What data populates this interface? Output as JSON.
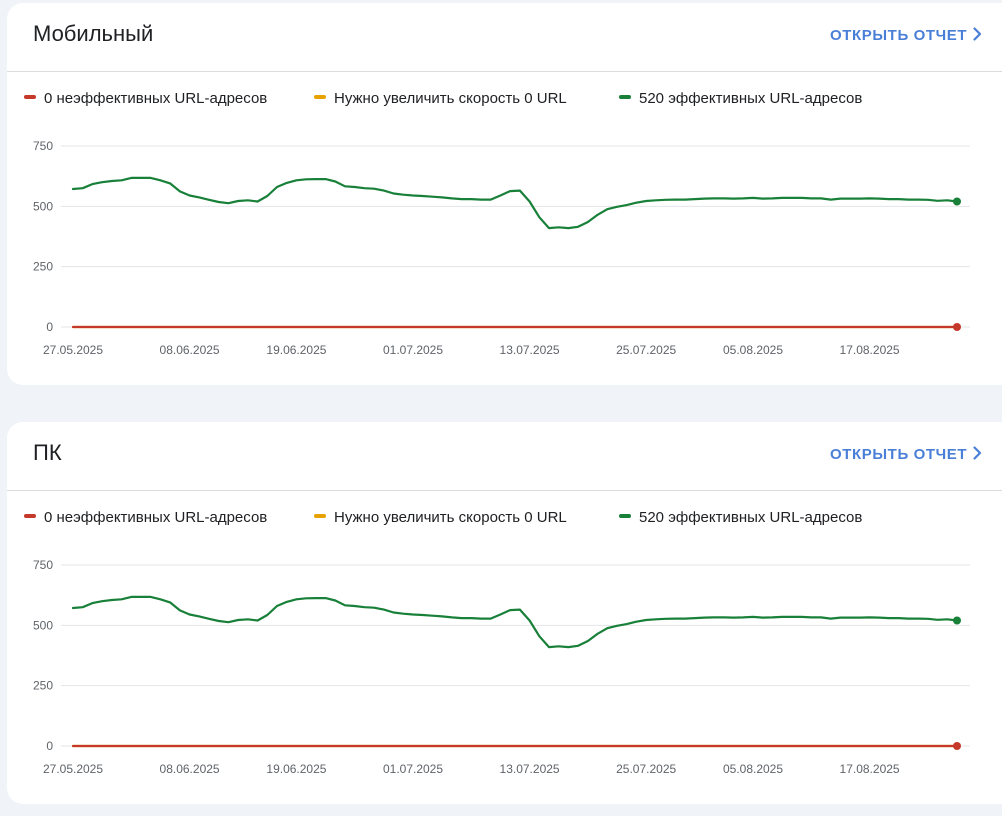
{
  "cards": [
    {
      "title": "Мобильный",
      "open_report_label": "ОТКРЫТЬ ОТЧЕТ",
      "legend": [
        {
          "label": "0 неэффективных URL-адресов",
          "color": "#c5392b"
        },
        {
          "label": "Нужно увеличить скорость 0 URL",
          "color": "#e8a200"
        },
        {
          "label": "520 эффективных URL-адресов",
          "color": "#188038"
        }
      ]
    },
    {
      "title": "ПК",
      "open_report_label": "ОТКРЫТЬ ОТЧЕТ",
      "legend": [
        {
          "label": "0 неэффективных URL-адресов",
          "color": "#c5392b"
        },
        {
          "label": "Нужно увеличить скорость 0 URL",
          "color": "#e8a200"
        },
        {
          "label": "520 эффективных URL-адресов",
          "color": "#188038"
        }
      ]
    }
  ],
  "chart_data": [
    {
      "type": "line",
      "x_range": [
        "27.05.2025",
        "26.08.2025"
      ],
      "x_ticks": [
        "27.05.2025",
        "08.06.2025",
        "19.06.2025",
        "01.07.2025",
        "13.07.2025",
        "25.07.2025",
        "05.08.2025",
        "17.08.2025"
      ],
      "y_ticks": [
        0,
        250,
        500,
        750
      ],
      "ylim": [
        0,
        750
      ],
      "grid": true,
      "legend_placement": "top-left",
      "series": [
        {
          "name": "0 неэффективных URL-адресов",
          "color": "#c5392b",
          "points": [
            [
              "27.05.2025",
              0
            ],
            [
              "26.08.2025",
              0
            ]
          ]
        },
        {
          "name": "Нужно увеличить скорость 0 URL",
          "color": "#e8a200",
          "points": [
            [
              "27.05.2025",
              0
            ],
            [
              "26.08.2025",
              0
            ]
          ]
        },
        {
          "name": "520 эффективных URL-адресов",
          "color": "#188038",
          "points": [
            [
              "27.05.2025",
              572
            ],
            [
              "28.05.2025",
              575
            ],
            [
              "29.05.2025",
              592
            ],
            [
              "30.05.2025",
              600
            ],
            [
              "31.05.2025",
              605
            ],
            [
              "01.06.2025",
              608
            ],
            [
              "02.06.2025",
              618
            ],
            [
              "03.06.2025",
              618
            ],
            [
              "04.06.2025",
              618
            ],
            [
              "05.06.2025",
              608
            ],
            [
              "06.06.2025",
              595
            ],
            [
              "07.06.2025",
              562
            ],
            [
              "08.06.2025",
              545
            ],
            [
              "09.06.2025",
              537
            ],
            [
              "10.06.2025",
              527
            ],
            [
              "11.06.2025",
              518
            ],
            [
              "12.06.2025",
              513
            ],
            [
              "13.06.2025",
              522
            ],
            [
              "14.06.2025",
              525
            ],
            [
              "15.06.2025",
              520
            ],
            [
              "16.06.2025",
              543
            ],
            [
              "17.06.2025",
              580
            ],
            [
              "18.06.2025",
              597
            ],
            [
              "19.06.2025",
              608
            ],
            [
              "20.06.2025",
              612
            ],
            [
              "21.06.2025",
              613
            ],
            [
              "22.06.2025",
              613
            ],
            [
              "23.06.2025",
              603
            ],
            [
              "24.06.2025",
              583
            ],
            [
              "25.06.2025",
              580
            ],
            [
              "26.06.2025",
              575
            ],
            [
              "27.06.2025",
              573
            ],
            [
              "28.06.2025",
              565
            ],
            [
              "29.06.2025",
              553
            ],
            [
              "30.06.2025",
              548
            ],
            [
              "01.07.2025",
              545
            ],
            [
              "02.07.2025",
              543
            ],
            [
              "03.07.2025",
              540
            ],
            [
              "04.07.2025",
              537
            ],
            [
              "05.07.2025",
              533
            ],
            [
              "06.07.2025",
              530
            ],
            [
              "07.07.2025",
              530
            ],
            [
              "08.07.2025",
              528
            ],
            [
              "09.07.2025",
              528
            ],
            [
              "10.07.2025",
              545
            ],
            [
              "11.07.2025",
              563
            ],
            [
              "12.07.2025",
              565
            ],
            [
              "13.07.2025",
              520
            ],
            [
              "14.07.2025",
              455
            ],
            [
              "15.07.2025",
              410
            ],
            [
              "16.07.2025",
              413
            ],
            [
              "17.07.2025",
              410
            ],
            [
              "18.07.2025",
              415
            ],
            [
              "19.07.2025",
              435
            ],
            [
              "20.07.2025",
              465
            ],
            [
              "21.07.2025",
              488
            ],
            [
              "22.07.2025",
              498
            ],
            [
              "23.07.2025",
              505
            ],
            [
              "24.07.2025",
              515
            ],
            [
              "25.07.2025",
              522
            ],
            [
              "26.07.2025",
              525
            ],
            [
              "27.07.2025",
              527
            ],
            [
              "28.07.2025",
              528
            ],
            [
              "29.07.2025",
              528
            ],
            [
              "30.07.2025",
              530
            ],
            [
              "31.07.2025",
              532
            ],
            [
              "01.08.2025",
              533
            ],
            [
              "02.08.2025",
              533
            ],
            [
              "03.08.2025",
              532
            ],
            [
              "04.08.2025",
              533
            ],
            [
              "05.08.2025",
              535
            ],
            [
              "06.08.2025",
              532
            ],
            [
              "07.08.2025",
              533
            ],
            [
              "08.08.2025",
              535
            ],
            [
              "09.08.2025",
              535
            ],
            [
              "10.08.2025",
              535
            ],
            [
              "11.08.2025",
              533
            ],
            [
              "12.08.2025",
              533
            ],
            [
              "13.08.2025",
              528
            ],
            [
              "14.08.2025",
              532
            ],
            [
              "15.08.2025",
              532
            ],
            [
              "16.08.2025",
              532
            ],
            [
              "17.08.2025",
              533
            ],
            [
              "18.08.2025",
              532
            ],
            [
              "19.08.2025",
              530
            ],
            [
              "20.08.2025",
              530
            ],
            [
              "21.08.2025",
              528
            ],
            [
              "22.08.2025",
              528
            ],
            [
              "23.08.2025",
              527
            ],
            [
              "24.08.2025",
              523
            ],
            [
              "25.08.2025",
              525
            ],
            [
              "26.08.2025",
              520
            ]
          ]
        }
      ]
    },
    {
      "type": "line",
      "x_range": [
        "27.05.2025",
        "26.08.2025"
      ],
      "x_ticks": [
        "27.05.2025",
        "08.06.2025",
        "19.06.2025",
        "01.07.2025",
        "13.07.2025",
        "25.07.2025",
        "05.08.2025",
        "17.08.2025"
      ],
      "y_ticks": [
        0,
        250,
        500,
        750
      ],
      "ylim": [
        0,
        750
      ],
      "grid": true,
      "legend_placement": "top-left",
      "series": [
        {
          "name": "0 неэффективных URL-адресов",
          "color": "#c5392b",
          "points": [
            [
              "27.05.2025",
              0
            ],
            [
              "26.08.2025",
              0
            ]
          ]
        },
        {
          "name": "Нужно увеличить скорость 0 URL",
          "color": "#e8a200",
          "points": [
            [
              "27.05.2025",
              0
            ],
            [
              "26.08.2025",
              0
            ]
          ]
        },
        {
          "name": "520 эффективных URL-адресов",
          "color": "#188038",
          "points": [
            [
              "27.05.2025",
              572
            ],
            [
              "28.05.2025",
              575
            ],
            [
              "29.05.2025",
              592
            ],
            [
              "30.05.2025",
              600
            ],
            [
              "31.05.2025",
              605
            ],
            [
              "01.06.2025",
              608
            ],
            [
              "02.06.2025",
              618
            ],
            [
              "03.06.2025",
              618
            ],
            [
              "04.06.2025",
              618
            ],
            [
              "05.06.2025",
              608
            ],
            [
              "06.06.2025",
              595
            ],
            [
              "07.06.2025",
              562
            ],
            [
              "08.06.2025",
              545
            ],
            [
              "09.06.2025",
              537
            ],
            [
              "10.06.2025",
              527
            ],
            [
              "11.06.2025",
              518
            ],
            [
              "12.06.2025",
              513
            ],
            [
              "13.06.2025",
              522
            ],
            [
              "14.06.2025",
              525
            ],
            [
              "15.06.2025",
              520
            ],
            [
              "16.06.2025",
              543
            ],
            [
              "17.06.2025",
              580
            ],
            [
              "18.06.2025",
              597
            ],
            [
              "19.06.2025",
              608
            ],
            [
              "20.06.2025",
              612
            ],
            [
              "21.06.2025",
              613
            ],
            [
              "22.06.2025",
              613
            ],
            [
              "23.06.2025",
              603
            ],
            [
              "24.06.2025",
              583
            ],
            [
              "25.06.2025",
              580
            ],
            [
              "26.06.2025",
              575
            ],
            [
              "27.06.2025",
              573
            ],
            [
              "28.06.2025",
              565
            ],
            [
              "29.06.2025",
              553
            ],
            [
              "30.06.2025",
              548
            ],
            [
              "01.07.2025",
              545
            ],
            [
              "02.07.2025",
              543
            ],
            [
              "03.07.2025",
              540
            ],
            [
              "04.07.2025",
              537
            ],
            [
              "05.07.2025",
              533
            ],
            [
              "06.07.2025",
              530
            ],
            [
              "07.07.2025",
              530
            ],
            [
              "08.07.2025",
              528
            ],
            [
              "09.07.2025",
              528
            ],
            [
              "10.07.2025",
              545
            ],
            [
              "11.07.2025",
              563
            ],
            [
              "12.07.2025",
              565
            ],
            [
              "13.07.2025",
              520
            ],
            [
              "14.07.2025",
              455
            ],
            [
              "15.07.2025",
              410
            ],
            [
              "16.07.2025",
              413
            ],
            [
              "17.07.2025",
              410
            ],
            [
              "18.07.2025",
              415
            ],
            [
              "19.07.2025",
              435
            ],
            [
              "20.07.2025",
              465
            ],
            [
              "21.07.2025",
              488
            ],
            [
              "22.07.2025",
              498
            ],
            [
              "23.07.2025",
              505
            ],
            [
              "24.07.2025",
              515
            ],
            [
              "25.07.2025",
              522
            ],
            [
              "26.07.2025",
              525
            ],
            [
              "27.07.2025",
              527
            ],
            [
              "28.07.2025",
              528
            ],
            [
              "29.07.2025",
              528
            ],
            [
              "30.07.2025",
              530
            ],
            [
              "31.07.2025",
              532
            ],
            [
              "01.08.2025",
              533
            ],
            [
              "02.08.2025",
              533
            ],
            [
              "03.08.2025",
              532
            ],
            [
              "04.08.2025",
              533
            ],
            [
              "05.08.2025",
              535
            ],
            [
              "06.08.2025",
              532
            ],
            [
              "07.08.2025",
              533
            ],
            [
              "08.08.2025",
              535
            ],
            [
              "09.08.2025",
              535
            ],
            [
              "10.08.2025",
              535
            ],
            [
              "11.08.2025",
              533
            ],
            [
              "12.08.2025",
              533
            ],
            [
              "13.08.2025",
              528
            ],
            [
              "14.08.2025",
              532
            ],
            [
              "15.08.2025",
              532
            ],
            [
              "16.08.2025",
              532
            ],
            [
              "17.08.2025",
              533
            ],
            [
              "18.08.2025",
              532
            ],
            [
              "19.08.2025",
              530
            ],
            [
              "20.08.2025",
              530
            ],
            [
              "21.08.2025",
              528
            ],
            [
              "22.08.2025",
              528
            ],
            [
              "23.08.2025",
              527
            ],
            [
              "24.08.2025",
              523
            ],
            [
              "25.08.2025",
              525
            ],
            [
              "26.08.2025",
              520
            ]
          ]
        }
      ]
    }
  ]
}
